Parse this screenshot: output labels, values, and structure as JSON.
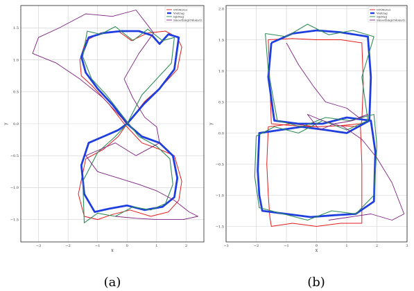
{
  "chart_data": [
    {
      "type": "line",
      "caption": "(a)",
      "xlabel": "x",
      "ylabel": "y",
      "xlim": [
        -3.6,
        2.6
      ],
      "ylim": [
        -1.85,
        1.85
      ],
      "xticks": [
        -3,
        -2,
        -1,
        0,
        1,
        2
      ],
      "yticks": [
        1.5,
        1.0,
        0.5,
        0.0,
        -0.5,
        -1.0,
        -1.5
      ],
      "yticklabels": [
        "1.5",
        "1.0",
        "0.5",
        "0.0",
        "−0.5",
        "−1.0",
        "−1.5"
      ],
      "xticklabels": [
        "−3",
        "−2",
        "−1",
        "0",
        "1",
        "2"
      ],
      "grid": true,
      "legend_position": "top-right",
      "series": [
        {
          "name": "GT(Move)",
          "color": "#e41a1c",
          "x": [
            0.0,
            0.6,
            1.2,
            1.7,
            1.85,
            1.7,
            1.3,
            0.7,
            0.15,
            -0.3,
            -0.9,
            -1.4,
            -1.6,
            -1.55,
            -1.2,
            -0.6,
            -0.1,
            0.5,
            1.1,
            1.6,
            1.85,
            1.75,
            1.4,
            0.8,
            0.1,
            -0.5,
            -1.0,
            -1.45,
            -1.65,
            -1.4,
            -0.8,
            -0.3,
            0.0
          ],
          "y": [
            0.0,
            0.35,
            0.6,
            0.85,
            1.2,
            1.35,
            1.45,
            1.42,
            1.3,
            1.45,
            1.42,
            1.3,
            1.0,
            0.75,
            0.6,
            0.3,
            0.0,
            -0.3,
            -0.4,
            -0.5,
            -0.9,
            -1.2,
            -1.38,
            -1.45,
            -1.35,
            -1.42,
            -1.5,
            -1.45,
            -1.1,
            -0.55,
            -0.4,
            -0.2,
            0.0
          ]
        },
        {
          "name": "Voxtrag",
          "color": "#1f3ee0",
          "x": [
            0.0,
            0.55,
            1.1,
            1.6,
            1.75,
            1.4,
            1.1,
            0.85,
            0.4,
            -0.2,
            -0.8,
            -1.3,
            -1.55,
            -1.4,
            -1.0,
            -0.5,
            0.0,
            0.5,
            1.1,
            1.55,
            1.7,
            1.6,
            1.2,
            0.6,
            0.0,
            -0.6,
            -1.1,
            -1.45,
            -1.55,
            -1.3,
            -0.8,
            -0.3,
            0.0
          ],
          "y": [
            0.0,
            0.3,
            0.55,
            0.85,
            1.35,
            1.4,
            1.25,
            1.38,
            1.45,
            1.45,
            1.42,
            1.35,
            1.05,
            0.8,
            0.55,
            0.3,
            0.0,
            -0.2,
            -0.3,
            -0.5,
            -0.85,
            -1.15,
            -1.3,
            -1.35,
            -1.28,
            -1.33,
            -1.38,
            -1.1,
            -0.65,
            -0.3,
            -0.2,
            -0.1,
            0.0
          ]
        },
        {
          "name": "SpiNag",
          "color": "#2e8b57",
          "x": [
            0.0,
            0.5,
            1.0,
            1.5,
            1.6,
            1.2,
            0.7,
            0.2,
            -0.4,
            -0.9,
            -1.35,
            -1.5,
            -1.2,
            -0.7,
            -0.2,
            0.4,
            1.0,
            1.45,
            1.55,
            1.3,
            0.8,
            0.2,
            -0.4,
            -1.0,
            -1.45,
            -1.5,
            -1.0,
            -0.4,
            0.0
          ],
          "y": [
            0.0,
            0.45,
            0.7,
            0.95,
            1.35,
            1.3,
            1.48,
            1.3,
            1.52,
            1.4,
            1.45,
            1.05,
            0.7,
            0.45,
            0.15,
            -0.2,
            -0.35,
            -0.55,
            -0.95,
            -1.25,
            -1.35,
            -1.3,
            -1.45,
            -1.4,
            -1.55,
            -0.9,
            -0.45,
            -0.2,
            0.0
          ]
        },
        {
          "name": "Smoothing(Odomst)",
          "color": "#7b1f7f",
          "x": [
            0.0,
            -0.8,
            -1.6,
            -2.4,
            -3.2,
            -3.0,
            -2.3,
            -1.4,
            -0.5,
            0.3,
            0.9,
            0.4,
            -0.1,
            0.2,
            0.6,
            1.0,
            1.1,
            0.3,
            -0.4,
            -0.9,
            -1.4,
            -1.0,
            -0.3,
            0.4,
            1.0,
            1.6,
            2.1,
            2.4,
            1.9,
            1.0,
            0.3,
            -0.4
          ],
          "y": [
            0.0,
            0.4,
            0.7,
            0.95,
            1.1,
            1.35,
            1.5,
            1.72,
            1.68,
            1.78,
            1.42,
            1.1,
            0.7,
            0.4,
            0.1,
            -0.05,
            -0.3,
            -0.5,
            -0.3,
            -0.4,
            -0.5,
            -0.75,
            -0.85,
            -0.95,
            -1.05,
            -1.2,
            -1.38,
            -1.45,
            -1.5,
            -1.5,
            -1.48,
            -1.45
          ]
        }
      ]
    },
    {
      "type": "line",
      "caption": "(b)",
      "xlabel": "x",
      "ylabel": "y",
      "xlim": [
        -3.0,
        3.0
      ],
      "ylim": [
        -1.75,
        2.05
      ],
      "xticks": [
        -3,
        -2,
        -1,
        0,
        1,
        2,
        3
      ],
      "xticklabels": [
        "−3",
        "−2",
        "−1",
        "0",
        "1",
        "2",
        "3"
      ],
      "yticks": [
        2.0,
        1.5,
        1.0,
        0.5,
        0.0,
        -0.5,
        -1.0,
        -1.5
      ],
      "yticklabels": [
        "2.0",
        "1.5",
        "1.0",
        "0.5",
        "0.0",
        "−0.5",
        "−1.0",
        "−1.5"
      ],
      "grid": true,
      "legend_position": "top-right",
      "series": [
        {
          "name": "GT(Move)",
          "color": "#e41a1c",
          "x": [
            -1.6,
            -0.8,
            0.0,
            0.8,
            1.5,
            1.55,
            1.5,
            1.45,
            0.8,
            0.0,
            -0.8,
            -1.6,
            -1.65,
            -1.6,
            -1.55,
            -1.5,
            -0.8,
            0.0,
            0.8,
            1.5,
            1.5,
            1.45,
            0.8,
            0.0,
            -0.8,
            -1.5,
            -1.55,
            -1.6
          ],
          "y": [
            1.5,
            1.52,
            1.5,
            1.5,
            1.45,
            0.8,
            0.2,
            0.1,
            0.12,
            0.1,
            0.15,
            0.1,
            -0.5,
            -1.0,
            -1.35,
            -1.5,
            -1.45,
            -1.5,
            -1.45,
            -1.45,
            -0.5,
            0.15,
            0.12,
            0.1,
            0.12,
            0.15,
            0.8,
            1.5
          ]
        },
        {
          "name": "Voxtrag",
          "color": "#1f3ee0",
          "x": [
            -1.5,
            -0.8,
            0.0,
            0.8,
            1.7,
            1.8,
            1.75,
            1.0,
            0.3,
            -0.5,
            -1.2,
            -1.9,
            -1.95,
            -1.9,
            -1.8,
            -1.0,
            -0.2,
            0.6,
            1.3,
            1.9,
            1.95,
            1.8,
            1.0,
            0.2,
            -0.6,
            -1.4,
            -1.6,
            -1.5
          ],
          "y": [
            1.45,
            1.6,
            1.65,
            1.62,
            1.55,
            0.9,
            0.2,
            0.0,
            0.05,
            0.1,
            0.05,
            0.0,
            -0.6,
            -1.0,
            -1.25,
            -1.3,
            -1.35,
            -1.32,
            -1.3,
            -1.1,
            -0.3,
            0.2,
            0.25,
            0.15,
            0.15,
            0.2,
            0.9,
            1.45
          ]
        },
        {
          "name": "SpiNag",
          "color": "#2e8b57",
          "x": [
            -1.7,
            -1.0,
            -0.3,
            0.4,
            1.2,
            1.9,
            1.5,
            1.7,
            1.0,
            0.2,
            -0.6,
            -1.4,
            -2.0,
            -2.05,
            -1.9,
            -1.1,
            -0.3,
            0.5,
            1.3,
            1.9,
            2.0,
            1.9,
            1.1,
            0.3,
            -0.5,
            -1.3,
            -1.6,
            -1.7
          ],
          "y": [
            1.6,
            1.55,
            1.75,
            1.58,
            1.65,
            1.55,
            0.9,
            0.2,
            0.05,
            0.2,
            0.0,
            0.1,
            -0.05,
            -0.7,
            -1.2,
            -1.3,
            -1.4,
            -1.25,
            -1.3,
            -1.0,
            -0.2,
            0.3,
            0.2,
            0.25,
            0.1,
            0.2,
            1.0,
            1.6
          ]
        },
        {
          "name": "Smoothing(Odomst)",
          "color": "#7b1f7f",
          "x": [
            -1.0,
            -0.6,
            -0.1,
            0.3,
            1.0,
            1.4,
            1.7,
            1.2,
            0.6,
            0.1,
            -0.3,
            0.2,
            0.9,
            1.5,
            2.0,
            2.5,
            2.9,
            2.5,
            1.8,
            1.1,
            0.4
          ],
          "y": [
            1.45,
            1.1,
            0.75,
            0.5,
            0.4,
            0.25,
            0.3,
            0.2,
            0.15,
            0.05,
            0.3,
            0.2,
            0.1,
            -0.1,
            -0.4,
            -0.8,
            -1.3,
            -1.4,
            -1.3,
            -1.35,
            -1.4
          ]
        }
      ]
    }
  ]
}
